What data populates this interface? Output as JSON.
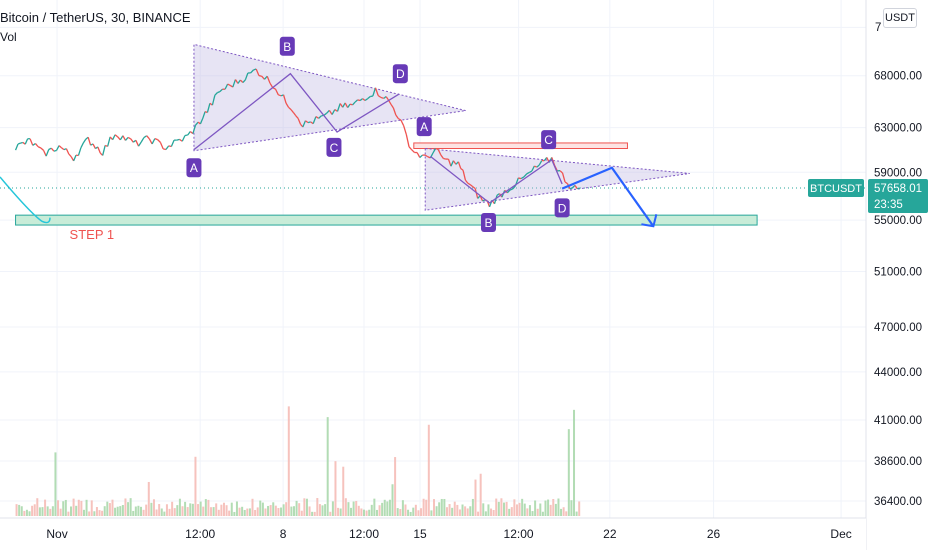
{
  "header": {
    "symbol": "Bitcoin / TetherUS, 30, BINANCE",
    "volume_label": "Vol",
    "currency_button": "USDT"
  },
  "price_tag": {
    "symbol": "BTCUSDT",
    "price": "57658.01",
    "countdown": "23:35"
  },
  "colors": {
    "triangle_fill": "#b9b2e0",
    "triangle_stroke": "#7e57c2",
    "label_bg": "#673ab7",
    "zone_fill": "#c8ecd8",
    "zone_stroke": "#26a69a",
    "resistance_fill": "#fde3e3",
    "resistance_stroke": "#ef5350",
    "projection": "#2962ff",
    "step_text": "#ef5350",
    "up": "#26a69a",
    "down": "#ef5350",
    "price_tag_bg": "#26a69a"
  },
  "chart_data": {
    "type": "line",
    "title": "Bitcoin / TetherUS, 30, BINANCE",
    "x_tick_labels": [
      "Nov",
      "12:00",
      "8",
      "12:00",
      "15",
      "12:00",
      "22",
      "26",
      "Dec"
    ],
    "y_tick_labels": [
      "36400.00",
      "38600.00",
      "41000.00",
      "44000.00",
      "47000.00",
      "51000.00",
      "55000.00",
      "59000.00",
      "63000.00",
      "68000.00"
    ],
    "y_top_partial_label": "7",
    "y_scale": "log",
    "ylim": [
      35500,
      76000
    ],
    "grid": true,
    "last_price": 57658.01,
    "series": [
      {
        "values": [
          {
            "x": 0,
            "y": 61200
          },
          {
            "x": 1.4,
            "y": 61800
          },
          {
            "x": 2.7,
            "y": 60600
          },
          {
            "x": 4.2,
            "y": 61300
          },
          {
            "x": 5.6,
            "y": 60300
          },
          {
            "x": 7,
            "y": 61900
          },
          {
            "x": 8.4,
            "y": 60800
          },
          {
            "x": 9.6,
            "y": 62500
          },
          {
            "x": 11.6,
            "y": 61500
          },
          {
            "x": 12.9,
            "y": 62000
          },
          {
            "x": 14.5,
            "y": 61200
          },
          {
            "x": 16.6,
            "y": 62200
          },
          {
            "x": 17.6,
            "y": 63300
          },
          {
            "x": 18.5,
            "y": 64600
          },
          {
            "x": 19.7,
            "y": 66500
          },
          {
            "x": 21.2,
            "y": 67300
          },
          {
            "x": 22.4,
            "y": 68000
          },
          {
            "x": 23.2,
            "y": 68600
          },
          {
            "x": 24.8,
            "y": 67200
          },
          {
            "x": 25.6,
            "y": 66000
          },
          {
            "x": 26.8,
            "y": 64700
          },
          {
            "x": 27.7,
            "y": 63300
          },
          {
            "x": 28.7,
            "y": 63600
          },
          {
            "x": 30,
            "y": 64100
          },
          {
            "x": 31.3,
            "y": 64900
          },
          {
            "x": 32.5,
            "y": 65100
          },
          {
            "x": 33.7,
            "y": 65900
          },
          {
            "x": 34.7,
            "y": 66500
          },
          {
            "x": 35.5,
            "y": 66000
          },
          {
            "x": 36.2,
            "y": 65200
          },
          {
            "x": 36.9,
            "y": 64100
          },
          {
            "x": 38.2,
            "y": 61000
          },
          {
            "x": 39.5,
            "y": 60200
          },
          {
            "x": 40.5,
            "y": 60900
          },
          {
            "x": 41.5,
            "y": 60000
          },
          {
            "x": 42.7,
            "y": 59700
          },
          {
            "x": 43.6,
            "y": 58100
          },
          {
            "x": 44.8,
            "y": 56800
          },
          {
            "x": 45.7,
            "y": 56300
          },
          {
            "x": 46.9,
            "y": 57200
          },
          {
            "x": 48.2,
            "y": 58000
          },
          {
            "x": 49.3,
            "y": 58700
          },
          {
            "x": 50.5,
            "y": 59600
          },
          {
            "x": 51.7,
            "y": 60200
          },
          {
            "x": 52.5,
            "y": 59000
          },
          {
            "x": 53.7,
            "y": 57600
          },
          {
            "x": 54.4,
            "y": 57658
          }
        ]
      }
    ],
    "annotations": {
      "triangle_1": {
        "points": [
          {
            "x": 17.2,
            "y": 60900
          },
          {
            "x": 17.2,
            "y": 71200
          },
          {
            "x": 43.4,
            "y": 64600
          }
        ]
      },
      "triangle_2": {
        "points": [
          {
            "x": 39.5,
            "y": 61100
          },
          {
            "x": 39.5,
            "y": 55800
          },
          {
            "x": 65,
            "y": 58900
          }
        ]
      },
      "wave_1": [
        {
          "x": 17.2,
          "y": 61000
        },
        {
          "x": 26.5,
          "y": 68200
        },
        {
          "x": 31,
          "y": 62600
        },
        {
          "x": 37,
          "y": 66200
        }
      ],
      "wave_2": [
        {
          "x": 40,
          "y": 60400
        },
        {
          "x": 45.7,
          "y": 56400
        },
        {
          "x": 51.7,
          "y": 60100
        },
        {
          "x": 52.7,
          "y": 58000
        }
      ],
      "projection": [
        {
          "x": 52.7,
          "y": 57600
        },
        {
          "x": 57.5,
          "y": 59400
        },
        {
          "x": 61.5,
          "y": 54500
        }
      ],
      "labels": [
        {
          "text": "A",
          "x": 17.2,
          "y": 59400
        },
        {
          "text": "B",
          "x": 26.2,
          "y": 71000
        },
        {
          "text": "C",
          "x": 30.7,
          "y": 61200
        },
        {
          "text": "D",
          "x": 37.1,
          "y": 68200
        },
        {
          "text": "A",
          "x": 39.4,
          "y": 63100
        },
        {
          "text": "B",
          "x": 45.6,
          "y": 54800
        },
        {
          "text": "C",
          "x": 51.4,
          "y": 61900
        },
        {
          "text": "D",
          "x": 52.7,
          "y": 56000
        }
      ],
      "support_zone": {
        "x": [
          0,
          71.5
        ],
        "y": [
          54600,
          55400
        ],
        "label": "STEP 1"
      },
      "resistance_zone": {
        "x": [
          38.4,
          59
        ],
        "y": [
          61100,
          61600
        ]
      }
    },
    "volume": {
      "label": "Vol"
    }
  }
}
